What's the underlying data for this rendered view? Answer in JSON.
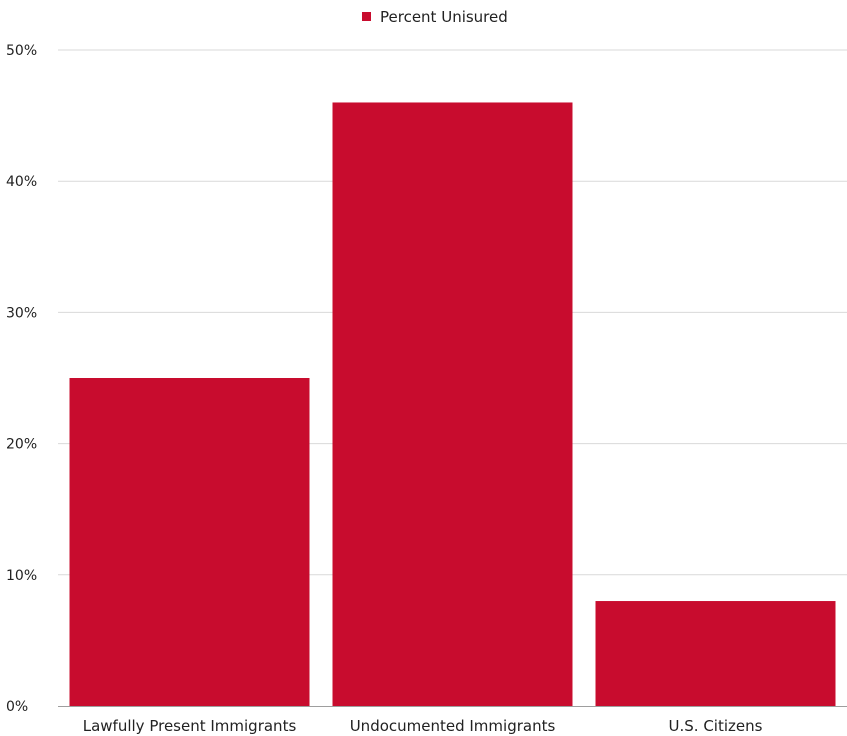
{
  "chart_data": {
    "type": "bar",
    "categories": [
      "Lawfully Present Immigrants",
      "Undocumented Immigrants",
      "U.S. Citizens"
    ],
    "series": [
      {
        "name": "Percent Unisured",
        "values": [
          25,
          46,
          8
        ]
      }
    ],
    "yticks": [
      "0%",
      "10%",
      "20%",
      "30%",
      "40%",
      "50%"
    ],
    "ylim": [
      0,
      50
    ],
    "grid": true,
    "legend_position": "top-center",
    "bar_color": "#c80c2e",
    "xlabel": "",
    "ylabel": ""
  }
}
